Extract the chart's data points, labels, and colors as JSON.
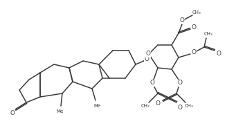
{
  "bg_color": "#ffffff",
  "line_color": "#3a3a3a",
  "line_width": 1.1,
  "figsize": [
    3.54,
    1.82
  ],
  "dpi": 100,
  "xlim": [
    0,
    354
  ],
  "ylim": [
    0,
    182
  ]
}
